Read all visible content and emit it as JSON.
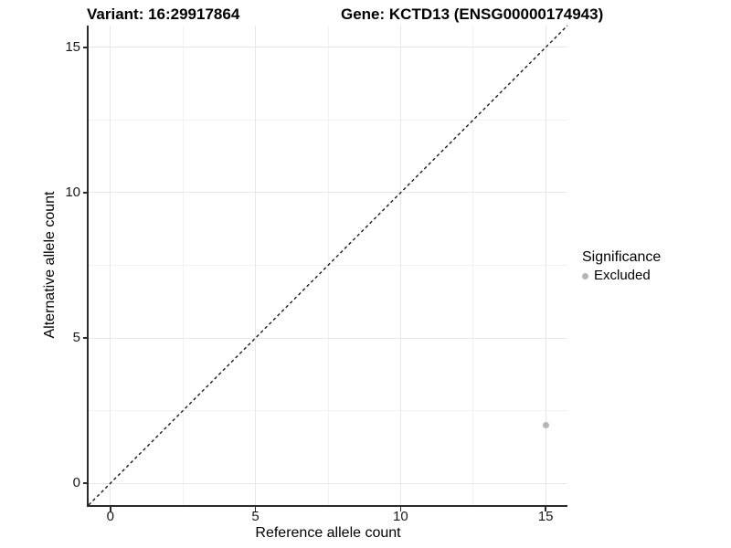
{
  "titles": {
    "variant": "Variant: 16:29917864",
    "gene": "Gene: KCTD13 (ENSG00000174943)"
  },
  "chart_data": {
    "type": "scatter",
    "title": "Variant: 16:29917864    Gene: KCTD13 (ENSG00000174943)",
    "xlabel": "Reference allele count",
    "ylabel": "Alternative allele count",
    "xlim": [
      -0.75,
      15.75
    ],
    "ylim": [
      -0.75,
      15.75
    ],
    "x_major_ticks": [
      0,
      5,
      10,
      15
    ],
    "y_major_ticks": [
      0,
      5,
      10,
      15
    ],
    "x_minor_ticks": [
      2.5,
      7.5,
      12.5
    ],
    "y_minor_ticks": [
      2.5,
      7.5,
      12.5
    ],
    "grid": true,
    "series": [
      {
        "name": "Excluded",
        "color": "#b5b5b5",
        "points": [
          {
            "x": 15,
            "y": 2
          }
        ]
      }
    ],
    "reference_line": {
      "type": "identity",
      "style": "dashed",
      "color": "#1a1a1a",
      "from": -0.75,
      "to": 15.75
    },
    "legend": {
      "title": "Significance",
      "position": "right",
      "entries": [
        {
          "label": "Excluded",
          "color": "#b5b5b5"
        }
      ]
    }
  },
  "colors": {
    "background": "#ffffff",
    "grid_major": "#e7e7e7",
    "grid_minor": "#f2f2f2",
    "axis_line": "#2a2a2a",
    "point": "#b5b5b5",
    "dashed_line": "#1a1a1a"
  }
}
